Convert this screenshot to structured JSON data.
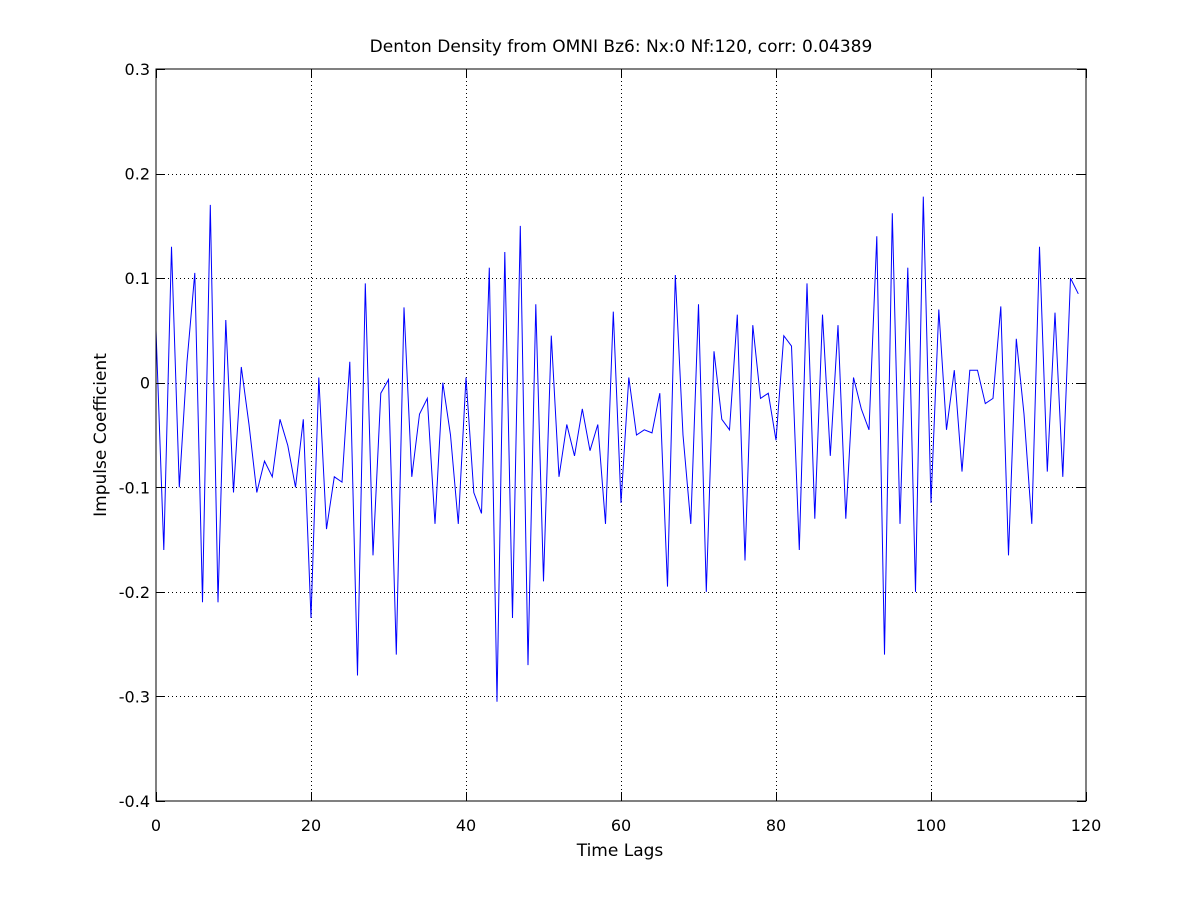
{
  "chart_data": {
    "type": "line",
    "title": "Denton Density from OMNI Bz6: Nx:0 Nf:120, corr: 0.04389",
    "xlabel": "Time Lags",
    "ylabel": "Impulse Coefficient",
    "xlim": [
      0,
      120
    ],
    "ylim": [
      -0.4,
      0.3
    ],
    "xticks": [
      0,
      20,
      40,
      60,
      80,
      100,
      120
    ],
    "yticks": [
      -0.4,
      -0.3,
      -0.2,
      -0.1,
      0,
      0.1,
      0.2,
      0.3
    ],
    "xtick_labels": [
      "0",
      "20",
      "40",
      "60",
      "80",
      "100",
      "120"
    ],
    "ytick_labels": [
      "-0.4",
      "-0.3",
      "-0.2",
      "-0.1",
      "0",
      "0.1",
      "0.2",
      "0.3"
    ],
    "grid": true,
    "grid_style": "dotted",
    "series": [
      {
        "color": "#0000ff",
        "x": [
          0,
          1,
          2,
          3,
          4,
          5,
          6,
          7,
          8,
          9,
          10,
          11,
          12,
          13,
          14,
          15,
          16,
          17,
          18,
          19,
          20,
          21,
          22,
          23,
          24,
          25,
          26,
          27,
          28,
          29,
          30,
          31,
          32,
          33,
          34,
          35,
          36,
          37,
          38,
          39,
          40,
          41,
          42,
          43,
          44,
          45,
          46,
          47,
          48,
          49,
          50,
          51,
          52,
          53,
          54,
          55,
          56,
          57,
          58,
          59,
          60,
          61,
          62,
          63,
          64,
          65,
          66,
          67,
          68,
          69,
          70,
          71,
          72,
          73,
          74,
          75,
          76,
          77,
          78,
          79,
          80,
          81,
          82,
          83,
          84,
          85,
          86,
          87,
          88,
          89,
          90,
          91,
          92,
          93,
          94,
          95,
          96,
          97,
          98,
          99,
          100,
          101,
          102,
          103,
          104,
          105,
          106,
          107,
          108,
          109,
          110,
          111,
          112,
          113,
          114,
          115,
          116,
          117,
          118,
          119
        ],
        "values": [
          0.05,
          -0.16,
          0.13,
          -0.1,
          0.02,
          0.105,
          -0.21,
          0.17,
          -0.21,
          0.06,
          -0.105,
          0.015,
          -0.04,
          -0.105,
          -0.075,
          -0.09,
          -0.035,
          -0.06,
          -0.1,
          -0.035,
          -0.225,
          0.005,
          -0.14,
          -0.09,
          -0.095,
          0.02,
          -0.28,
          0.095,
          -0.165,
          -0.01,
          0.003,
          -0.26,
          0.072,
          -0.09,
          -0.03,
          -0.015,
          -0.135,
          0.0,
          -0.05,
          -0.135,
          0.005,
          -0.105,
          -0.125,
          0.11,
          -0.305,
          0.125,
          -0.225,
          0.15,
          -0.27,
          0.075,
          -0.19,
          0.045,
          -0.09,
          -0.04,
          -0.07,
          -0.025,
          -0.065,
          -0.04,
          -0.135,
          0.068,
          -0.115,
          0.005,
          -0.05,
          -0.045,
          -0.048,
          -0.01,
          -0.195,
          0.103,
          -0.05,
          -0.135,
          0.075,
          -0.2,
          0.03,
          -0.035,
          -0.045,
          0.065,
          -0.17,
          0.055,
          -0.015,
          -0.01,
          -0.055,
          0.045,
          0.035,
          -0.16,
          0.095,
          -0.13,
          0.065,
          -0.07,
          0.055,
          -0.13,
          0.005,
          -0.025,
          -0.045,
          0.14,
          -0.26,
          0.162,
          -0.135,
          0.11,
          -0.2,
          0.178,
          -0.115,
          0.07,
          -0.045,
          0.012,
          -0.085,
          0.012,
          0.012,
          -0.02,
          -0.015,
          0.073,
          -0.165,
          0.042,
          -0.03,
          -0.135,
          0.13,
          -0.085,
          0.067,
          -0.09,
          0.1,
          0.085
        ]
      }
    ]
  }
}
